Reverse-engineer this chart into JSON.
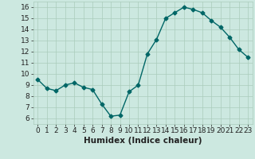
{
  "x": [
    0,
    1,
    2,
    3,
    4,
    5,
    6,
    7,
    8,
    9,
    10,
    11,
    12,
    13,
    14,
    15,
    16,
    17,
    18,
    19,
    20,
    21,
    22,
    23
  ],
  "y": [
    9.5,
    8.7,
    8.5,
    9.0,
    9.2,
    8.8,
    8.6,
    7.3,
    6.2,
    6.3,
    8.4,
    9.0,
    11.8,
    13.1,
    15.0,
    15.5,
    16.0,
    15.8,
    15.5,
    14.8,
    14.2,
    13.3,
    12.2,
    11.5
  ],
  "line_color": "#006666",
  "marker": "D",
  "markersize": 2.5,
  "linewidth": 1.0,
  "xlabel": "Humidex (Indice chaleur)",
  "xlim": [
    -0.5,
    23.5
  ],
  "ylim": [
    5.5,
    16.5
  ],
  "yticks": [
    6,
    7,
    8,
    9,
    10,
    11,
    12,
    13,
    14,
    15,
    16
  ],
  "xticks": [
    0,
    1,
    2,
    3,
    4,
    5,
    6,
    7,
    8,
    9,
    10,
    11,
    12,
    13,
    14,
    15,
    16,
    17,
    18,
    19,
    20,
    21,
    22,
    23
  ],
  "bg_color": "#cce8e0",
  "grid_color": "#aaccbb",
  "xlabel_fontsize": 7.5,
  "tick_fontsize": 6.5
}
